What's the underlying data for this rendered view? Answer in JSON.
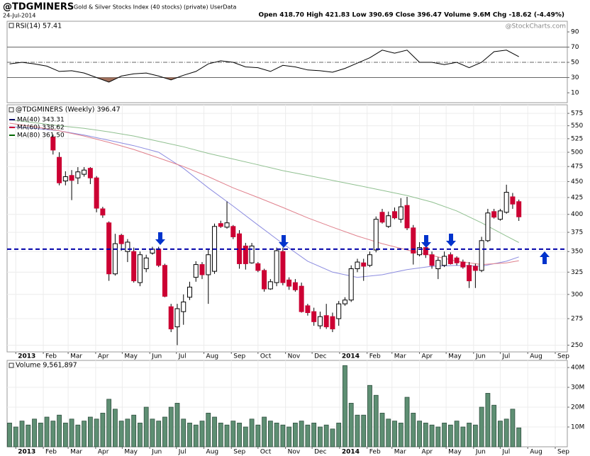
{
  "header": {
    "symbol": "@TDGMINERS",
    "description": "Gold & Silver Stocks Index (40 stocks) (private) UserData",
    "date": "24-Jul-2014",
    "quote": "Open 418.70 High 421.83 Low 390.69 Close 396.47 Volume 9.6M Chg -18.62 (-4.49%)",
    "watermark": "@StockCharts.com"
  },
  "chart_data": [
    {
      "type": "line",
      "title": "RSI(14) 57.41",
      "color": "#000000",
      "x": [
        -1,
        1,
        3,
        5,
        7,
        9,
        11,
        13,
        15,
        17,
        19,
        21,
        23,
        25,
        27,
        29,
        31,
        33,
        35,
        37,
        39,
        41,
        43,
        45,
        47,
        49,
        51,
        53,
        55,
        57,
        59,
        61,
        63,
        65,
        67,
        69,
        71,
        73,
        75,
        77,
        79,
        81
      ],
      "values": [
        48,
        50,
        48,
        45,
        38,
        39,
        36,
        30,
        24,
        32,
        35,
        36,
        32,
        27,
        33,
        38,
        48,
        52,
        50,
        44,
        43,
        38,
        46,
        44,
        40,
        39,
        37,
        42,
        49,
        56,
        66,
        62,
        66,
        50,
        50,
        47,
        50,
        43,
        50,
        64,
        66,
        57.41
      ],
      "xlim": [
        -1.4,
        88.8
      ],
      "ylim": [
        -3,
        104
      ],
      "yticks": [
        90,
        70,
        50,
        30,
        10
      ],
      "overbought": 70,
      "midline": 50,
      "oversold": 30,
      "oversold_fill": "#a0705c"
    },
    {
      "type": "candlestick",
      "title": "@TDGMINERS (Weekly) 396.47",
      "log": true,
      "grid": true,
      "up_color": "#ffffff",
      "down_color": "#cc0033",
      "x": [
        6,
        7,
        8,
        9,
        10,
        11,
        12,
        13,
        14,
        15,
        16,
        17,
        18,
        19,
        20,
        21,
        22,
        23,
        24,
        25,
        26,
        27,
        28,
        29,
        30,
        31,
        32,
        33,
        34,
        35,
        36,
        37,
        38,
        39,
        40,
        41,
        42,
        43,
        44,
        45,
        46,
        47,
        48,
        49,
        50,
        51,
        52,
        53,
        54,
        55,
        56,
        57,
        58,
        59,
        60,
        61,
        62,
        63,
        64,
        65,
        66,
        67,
        68,
        69,
        70,
        71,
        72,
        73,
        74,
        75,
        76,
        77,
        78,
        79,
        80,
        81
      ],
      "open": [
        528,
        491,
        451,
        460,
        456,
        462,
        472,
        456,
        408,
        388,
        323,
        371,
        350,
        350,
        313,
        329,
        348,
        353,
        333,
        287,
        267,
        282,
        297,
        319,
        334,
        322,
        326,
        387,
        382,
        383,
        373,
        357,
        336,
        335,
        327,
        306,
        313,
        350,
        316,
        313,
        309,
        288,
        282,
        268,
        278,
        277,
        275,
        290,
        294,
        329,
        336,
        333,
        352,
        403,
        383,
        404,
        393,
        413,
        381,
        346,
        355,
        346,
        329,
        333,
        346,
        342,
        337,
        333,
        332,
        327,
        364,
        404,
        393,
        403,
        426,
        418.7
      ],
      "high": [
        533,
        500,
        467,
        469,
        474,
        474,
        474,
        459,
        411,
        390,
        373,
        373,
        366,
        355,
        350,
        346,
        356,
        356,
        335,
        290,
        290,
        300,
        314,
        338,
        337,
        353,
        387,
        391,
        419,
        385,
        378,
        361,
        361,
        337,
        329,
        317,
        355,
        355,
        319,
        317,
        313,
        290,
        286,
        282,
        290,
        281,
        293,
        297,
        333,
        341,
        341,
        350,
        397,
        408,
        404,
        410,
        424,
        426,
        385,
        362,
        359,
        350,
        343,
        350,
        349,
        344,
        340,
        337,
        335,
        369,
        408,
        408,
        408,
        445,
        432,
        421.83
      ],
      "low": [
        496,
        444,
        444,
        421,
        446,
        458,
        446,
        403,
        395,
        315,
        321,
        351,
        337,
        313,
        309,
        325,
        346,
        331,
        297,
        262,
        250,
        269,
        294,
        314,
        317,
        290,
        323,
        381,
        380,
        366,
        329,
        328,
        335,
        325,
        303,
        305,
        309,
        310,
        305,
        303,
        281,
        278,
        268,
        265,
        265,
        262,
        268,
        288,
        292,
        325,
        315,
        331,
        349,
        387,
        381,
        393,
        388,
        378,
        334,
        344,
        342,
        329,
        317,
        331,
        334,
        333,
        329,
        307,
        307,
        325,
        362,
        394,
        391,
        401,
        408,
        390.69
      ],
      "close": [
        504,
        448,
        458,
        452,
        466,
        469,
        456,
        409,
        399,
        323,
        360,
        360,
        362,
        315,
        346,
        342,
        353,
        333,
        298,
        265,
        285,
        292,
        308,
        334,
        322,
        346,
        383,
        383,
        388,
        369,
        335,
        335,
        357,
        327,
        306,
        314,
        351,
        313,
        309,
        305,
        282,
        281,
        272,
        277,
        267,
        265,
        290,
        294,
        329,
        337,
        332,
        346,
        393,
        389,
        398,
        395,
        411,
        381,
        348,
        355,
        346,
        333,
        339,
        344,
        335,
        336,
        331,
        315,
        327,
        364,
        402,
        396,
        405,
        433,
        415.09,
        396.47
      ],
      "series": [
        {
          "name": "MA(40) 343.31",
          "color": "#8c8ce0",
          "label_color": "#000066",
          "x": [
            -1,
            3,
            7,
            11,
            15,
            19,
            23,
            27,
            31,
            35,
            39,
            43,
            47,
            51,
            55,
            59,
            63,
            67,
            71,
            75,
            79,
            81
          ],
          "values": [
            548,
            545,
            540,
            532,
            522,
            512,
            500,
            472,
            440,
            412,
            385,
            360,
            338,
            325,
            319,
            322,
            328,
            332,
            333,
            332,
            338,
            343.31
          ]
        },
        {
          "name": "MA(60) 338.62",
          "color": "#e0808c",
          "label_color": "#cc0033",
          "x": [
            -1,
            3,
            7,
            11,
            15,
            19,
            23,
            27,
            31,
            35,
            39,
            43,
            47,
            51,
            55,
            59,
            63,
            67,
            71,
            75,
            79,
            81
          ],
          "values": [
            555,
            548,
            540,
            530,
            518,
            505,
            490,
            475,
            458,
            440,
            425,
            410,
            395,
            382,
            370,
            360,
            352,
            345,
            338,
            334,
            336,
            338.62
          ]
        },
        {
          "name": "MA(80) 361.50",
          "color": "#90c090",
          "label_color": "#006600",
          "x": [
            -1,
            3,
            7,
            11,
            15,
            19,
            23,
            27,
            31,
            35,
            39,
            43,
            47,
            51,
            55,
            59,
            63,
            67,
            71,
            75,
            79,
            81
          ],
          "values": [
            562,
            556,
            550,
            545,
            538,
            530,
            520,
            510,
            498,
            488,
            478,
            468,
            460,
            452,
            444,
            436,
            428,
            418,
            405,
            388,
            370,
            361.5
          ]
        }
      ],
      "hline": {
        "value": 353,
        "color": "#0000aa"
      },
      "xlim": [
        -1.4,
        88.8
      ],
      "ylim": [
        244,
        593
      ],
      "yticks": [
        250,
        275,
        300,
        325,
        350,
        375,
        400,
        425,
        450,
        475,
        500,
        525,
        550,
        575
      ],
      "xticks": [
        {
          "value": 0,
          "label": "2013"
        },
        {
          "value": 4.43,
          "label": "Feb"
        },
        {
          "value": 8.43,
          "label": "Mar"
        },
        {
          "value": 12.86,
          "label": "Apr"
        },
        {
          "value": 17.14,
          "label": "May"
        },
        {
          "value": 21.57,
          "label": "Jun"
        },
        {
          "value": 25.86,
          "label": "Jul"
        },
        {
          "value": 30.29,
          "label": "Aug"
        },
        {
          "value": 34.71,
          "label": "Sep"
        },
        {
          "value": 39,
          "label": "Oct"
        },
        {
          "value": 43.43,
          "label": "Nov"
        },
        {
          "value": 47.71,
          "label": "Dec"
        },
        {
          "value": 52.14,
          "label": "2014"
        },
        {
          "value": 56.57,
          "label": "Feb"
        },
        {
          "value": 60.57,
          "label": "Mar"
        },
        {
          "value": 65,
          "label": "Apr"
        },
        {
          "value": 69.29,
          "label": "May"
        },
        {
          "value": 73.71,
          "label": "Jun"
        },
        {
          "value": 78,
          "label": "Jul"
        },
        {
          "value": 82.43,
          "label": "Aug"
        },
        {
          "value": 86.86,
          "label": "Sep"
        }
      ]
    },
    {
      "type": "bar",
      "title": "Volume 9,561,897",
      "color": "#5e8f73",
      "grid": true,
      "x": [
        -1,
        0,
        1,
        2,
        3,
        4,
        5,
        6,
        7,
        8,
        9,
        10,
        11,
        12,
        13,
        14,
        15,
        16,
        17,
        18,
        19,
        20,
        21,
        22,
        23,
        24,
        25,
        26,
        27,
        28,
        29,
        30,
        31,
        32,
        33,
        34,
        35,
        36,
        37,
        38,
        39,
        40,
        41,
        42,
        43,
        44,
        45,
        46,
        47,
        48,
        49,
        50,
        51,
        52,
        53,
        54,
        55,
        56,
        57,
        58,
        59,
        60,
        61,
        62,
        63,
        64,
        65,
        66,
        67,
        68,
        69,
        70,
        71,
        72,
        73,
        74,
        75,
        76,
        77,
        78,
        79,
        80,
        81
      ],
      "values": [
        12,
        10,
        13,
        11,
        14,
        12,
        15,
        13,
        16,
        12,
        14,
        11,
        13,
        15,
        14,
        17,
        24,
        19,
        13,
        14,
        16,
        12,
        20,
        14,
        13,
        15,
        20,
        22,
        14,
        12,
        11,
        13,
        17,
        15,
        12,
        11,
        13,
        12,
        10,
        14,
        11,
        15,
        13,
        12,
        11,
        10,
        12,
        13,
        11,
        12,
        10,
        11,
        9,
        12,
        41,
        22,
        16,
        16,
        31,
        26,
        17,
        14,
        13,
        12,
        25,
        17,
        13,
        12,
        11,
        10,
        12,
        11,
        13,
        10,
        12,
        11,
        20,
        27,
        21,
        13,
        14,
        19,
        9.56
      ],
      "xlim": [
        -1.4,
        88.8
      ],
      "ylim": [
        0,
        43.6
      ],
      "yticks": [
        {
          "value": 10,
          "label": "10M"
        },
        {
          "value": 20,
          "label": "20M"
        },
        {
          "value": 30,
          "label": "30M"
        },
        {
          "value": 40,
          "label": "40M"
        }
      ],
      "xticks": [
        {
          "value": 0,
          "label": "2013"
        },
        {
          "value": 4.43,
          "label": "Feb"
        },
        {
          "value": 8.43,
          "label": "Mar"
        },
        {
          "value": 12.86,
          "label": "Apr"
        },
        {
          "value": 17.14,
          "label": "May"
        },
        {
          "value": 21.57,
          "label": "Jun"
        },
        {
          "value": 25.86,
          "label": "Jul"
        },
        {
          "value": 30.29,
          "label": "Aug"
        },
        {
          "value": 34.71,
          "label": "Sep"
        },
        {
          "value": 39,
          "label": "Oct"
        },
        {
          "value": 43.43,
          "label": "Nov"
        },
        {
          "value": 47.71,
          "label": "Dec"
        },
        {
          "value": 52.14,
          "label": "2014"
        },
        {
          "value": 56.57,
          "label": "Feb"
        },
        {
          "value": 60.57,
          "label": "Mar"
        },
        {
          "value": 65,
          "label": "Apr"
        },
        {
          "value": 69.29,
          "label": "May"
        },
        {
          "value": 73.71,
          "label": "Jun"
        },
        {
          "value": 78,
          "label": "Jul"
        },
        {
          "value": 82.43,
          "label": "Aug"
        },
        {
          "value": 86.86,
          "label": "Sep"
        }
      ]
    }
  ]
}
